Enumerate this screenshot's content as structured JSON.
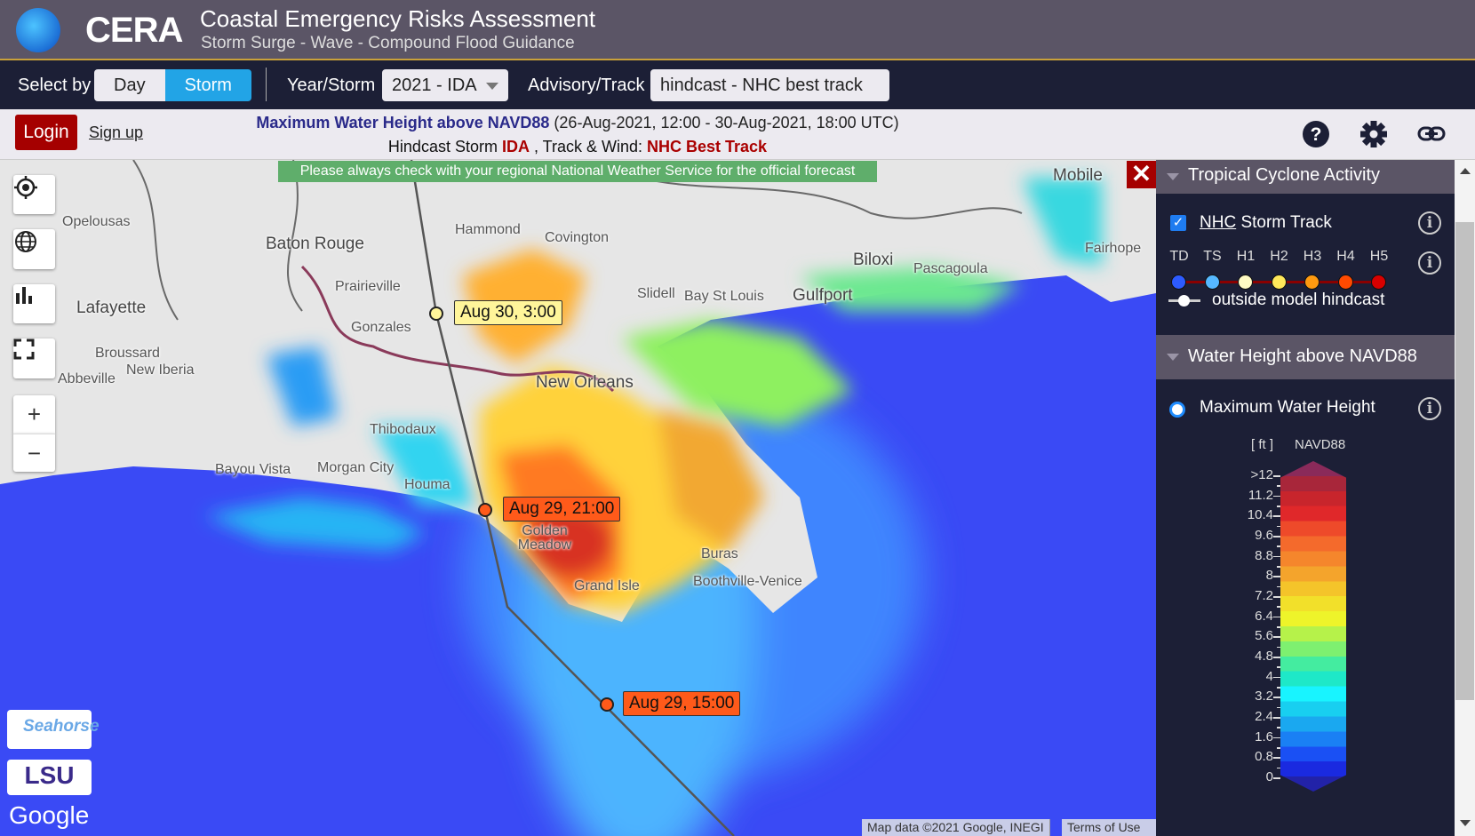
{
  "header": {
    "logo_text": "CERA",
    "title": "Coastal Emergency Risks Assessment",
    "subtitle": "Storm Surge - Wave - Compound Flood Guidance"
  },
  "toolbar": {
    "select_by_label": "Select by",
    "select_options": [
      "Day",
      "Storm"
    ],
    "selected": "Storm",
    "year_storm_label": "Year/Storm",
    "year_storm_value": "2021 - IDA",
    "advisory_label": "Advisory/Track",
    "advisory_value": "hindcast - NHC best track"
  },
  "infobar": {
    "login": "Login",
    "signup": "Sign up",
    "product": "Maximum Water Height above NAVD88",
    "period": "(26-Aug-2021, 12:00 - 30-Aug-2021, 18:00 UTC)",
    "line2_prefix": "Hindcast Storm ",
    "storm": "IDA",
    "line2_mid": " , Track & Wind: ",
    "track": "NHC Best Track",
    "icons": [
      "help-icon",
      "gear-icon",
      "link-icon"
    ]
  },
  "map": {
    "warning": "Please always check with your regional National Weather Service for the official forecast",
    "labels": [
      "Opelousas",
      "Baton Rouge",
      "Hammond",
      "Covington",
      "Lafayette",
      "Prairieville",
      "Gonzales",
      "Broussard",
      "New Iberia",
      "Abbeville",
      "Slidell",
      "Bay St Louis",
      "Gulfport",
      "Biloxi",
      "Pascagoula",
      "Mobile",
      "Fairhope",
      "New Orleans",
      "Thibodaux",
      "Bayou Vista",
      "Morgan City",
      "Houma",
      "Golden Meadow",
      "Buras",
      "Boothville-Venice",
      "Grand Isle"
    ],
    "track_points": [
      {
        "label": "Aug 30, 3:00",
        "category": "H1",
        "color": "#fff59a"
      },
      {
        "label": "Aug 29, 21:00",
        "category": "H4",
        "color": "#ff5a1a"
      },
      {
        "label": "Aug 29, 15:00",
        "category": "H4",
        "color": "#ff5a1a"
      }
    ],
    "controls": [
      "locate-icon",
      "globe-icon",
      "chart-icon",
      "fullscreen-icon",
      "zoom-in",
      "zoom-out"
    ],
    "zoom_in": "+",
    "zoom_out": "−",
    "logos": [
      "Seahorse Coastal Consulting",
      "LSU Louisiana State University",
      "Google"
    ],
    "google": "Google",
    "attribution": "Map data ©2021 Google, INEGI",
    "terms": "Terms of Use"
  },
  "panel": {
    "tc_header": "Tropical Cyclone Activity",
    "nhc_link": "NHC",
    "nhc_rest": " Storm Track",
    "nhc_checked": true,
    "categories": [
      {
        "name": "TD",
        "color": "#2d5bff"
      },
      {
        "name": "TS",
        "color": "#56b8ff"
      },
      {
        "name": "H1",
        "color": "#fffbc4"
      },
      {
        "name": "H2",
        "color": "#ffe85a"
      },
      {
        "name": "H3",
        "color": "#ff9a10"
      },
      {
        "name": "H4",
        "color": "#ff4a00"
      },
      {
        "name": "H5",
        "color": "#d80000"
      }
    ],
    "outside": "outside model hindcast",
    "wh_header": "Water Height above NAVD88",
    "mwh": "Maximum Water Height",
    "mwh_selected": true,
    "unit": "[ ft ]",
    "datum": "NAVD88",
    "ticks": [
      ">12",
      "11.2",
      "10.4",
      "9.6",
      "8.8",
      "8",
      "7.2",
      "6.4",
      "5.6",
      "4.8",
      "4",
      "3.2",
      "2.4",
      "1.6",
      "0.8",
      "0"
    ],
    "colors": [
      "#8a2a5a",
      "#a8263a",
      "#c8252c",
      "#e0282a",
      "#ee4a2a",
      "#f46a2c",
      "#f5862c",
      "#f4a42c",
      "#f4c42a",
      "#f2e02a",
      "#eef42a",
      "#b6f24a",
      "#7ef070",
      "#44eca0",
      "#1ee8c8",
      "#18f4ff",
      "#18cff0",
      "#1aa8f0",
      "#1a80f4",
      "#1a50f4",
      "#1a2ae0",
      "#2222a8"
    ]
  }
}
